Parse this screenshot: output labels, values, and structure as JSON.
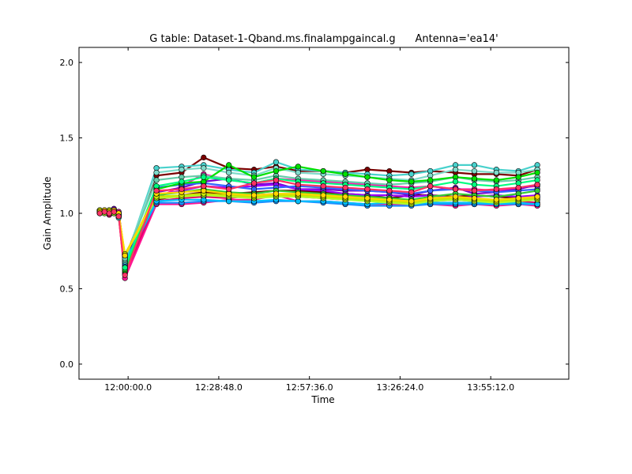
{
  "chart_data": {
    "type": "line",
    "title": "G table: Dataset-1-Qband.ms.finalampgaincal.g      Antenna='ea14'",
    "xlabel": "Time",
    "ylabel": "Gain Amplitude",
    "xlim": [
      "11:44:24",
      "14:20:00"
    ],
    "ylim": [
      -0.1,
      2.1
    ],
    "xticks": [
      "12:00:00.0",
      "12:28:48.0",
      "12:57:36.0",
      "13:26:24.0",
      "13:55:12.0"
    ],
    "yticks": [
      "0.0",
      "0.5",
      "1.0",
      "1.5",
      "2.0"
    ],
    "grid": false,
    "legend": "none",
    "marker": "circle",
    "x": [
      "11:51:00",
      "11:52:30",
      "11:54:00",
      "11:55:30",
      "11:57:00",
      "11:59:00",
      "12:09:00",
      "12:17:00",
      "12:24:00",
      "12:32:00",
      "12:40:00",
      "12:47:00",
      "12:54:00",
      "13:02:00",
      "13:09:00",
      "13:16:00",
      "13:23:00",
      "13:30:00",
      "13:36:00",
      "13:44:00",
      "13:50:00",
      "13:57:00",
      "14:04:00",
      "14:10:00"
    ],
    "series": [
      {
        "color": "#7b0000",
        "values": [
          1.02,
          1.01,
          1.02,
          1.0,
          1.01,
          0.7,
          1.25,
          1.27,
          1.37,
          1.3,
          1.29,
          1.31,
          1.28,
          1.28,
          1.27,
          1.29,
          1.28,
          1.27,
          1.28,
          1.27,
          1.26,
          1.26,
          1.25,
          1.29
        ]
      },
      {
        "color": "#660000",
        "values": [
          1.01,
          1.0,
          1.01,
          1.01,
          1.0,
          0.71,
          1.09,
          1.12,
          1.14,
          1.13,
          1.14,
          1.15,
          1.15,
          1.14,
          1.13,
          1.12,
          1.1,
          1.12,
          1.12,
          1.11,
          1.12,
          1.11,
          1.1,
          1.11
        ]
      },
      {
        "color": "#ff1493",
        "values": [
          1.01,
          1.02,
          1.0,
          1.01,
          0.99,
          0.57,
          1.06,
          1.06,
          1.07,
          1.09,
          1.09,
          1.12,
          1.08,
          1.08,
          1.07,
          1.06,
          1.06,
          1.06,
          1.06,
          1.05,
          1.06,
          1.05,
          1.06,
          1.05
        ]
      },
      {
        "color": "#ff1ab0",
        "values": [
          1.02,
          1.01,
          1.02,
          1.0,
          1.01,
          0.61,
          1.1,
          1.18,
          1.26,
          1.22,
          1.2,
          1.23,
          1.22,
          1.21,
          1.2,
          1.19,
          1.18,
          1.17,
          1.18,
          1.16,
          1.16,
          1.15,
          1.17,
          1.18
        ]
      },
      {
        "color": "#e6006e",
        "values": [
          1.0,
          1.01,
          0.99,
          1.0,
          0.98,
          0.6,
          1.08,
          1.1,
          1.11,
          1.1,
          1.12,
          1.13,
          1.11,
          1.1,
          1.09,
          1.09,
          1.08,
          1.07,
          1.08,
          1.09,
          1.08,
          1.07,
          1.08,
          1.07
        ]
      },
      {
        "color": "#7a00cc",
        "values": [
          1.01,
          1.02,
          1.01,
          1.03,
          1.0,
          0.64,
          1.14,
          1.17,
          1.21,
          1.23,
          1.19,
          1.2,
          1.16,
          1.16,
          1.15,
          1.15,
          1.14,
          1.12,
          1.15,
          1.17,
          1.13,
          1.14,
          1.16,
          1.19
        ]
      },
      {
        "color": "#9900ff",
        "values": [
          1.02,
          1.0,
          1.02,
          1.01,
          0.99,
          0.65,
          1.12,
          1.15,
          1.18,
          1.17,
          1.18,
          1.19,
          1.16,
          1.15,
          1.13,
          1.12,
          1.12,
          1.11,
          1.12,
          1.1,
          1.11,
          1.12,
          1.11,
          1.12
        ]
      },
      {
        "color": "#3366ff",
        "values": [
          1.0,
          1.01,
          1.0,
          1.02,
          0.98,
          0.66,
          1.17,
          1.19,
          1.2,
          1.18,
          1.16,
          1.17,
          1.18,
          1.17,
          1.16,
          1.15,
          1.14,
          1.13,
          1.15,
          1.16,
          1.15,
          1.14,
          1.15,
          1.16
        ]
      },
      {
        "color": "#1e90ff",
        "values": [
          1.01,
          1.0,
          1.01,
          1.0,
          0.99,
          0.67,
          1.07,
          1.07,
          1.08,
          1.08,
          1.07,
          1.08,
          1.08,
          1.07,
          1.06,
          1.05,
          1.05,
          1.05,
          1.06,
          1.06,
          1.06,
          1.06,
          1.06,
          1.06
        ]
      },
      {
        "color": "#00bfff",
        "values": [
          1.02,
          1.01,
          1.02,
          1.01,
          1.0,
          0.68,
          1.08,
          1.09,
          1.09,
          1.08,
          1.08,
          1.09,
          1.08,
          1.08,
          1.07,
          1.06,
          1.07,
          1.06,
          1.07,
          1.07,
          1.07,
          1.06,
          1.07,
          1.06
        ]
      },
      {
        "color": "#48d1cc",
        "values": [
          1.02,
          1.01,
          1.02,
          1.0,
          0.97,
          0.68,
          1.3,
          1.31,
          1.32,
          1.29,
          1.27,
          1.34,
          1.29,
          1.28,
          1.27,
          1.26,
          1.25,
          1.26,
          1.28,
          1.32,
          1.32,
          1.29,
          1.28,
          1.32
        ]
      },
      {
        "color": "#7fdbca",
        "values": [
          1.01,
          1.02,
          1.0,
          1.01,
          0.98,
          0.69,
          1.27,
          1.29,
          1.3,
          1.27,
          1.25,
          1.3,
          1.27,
          1.26,
          1.25,
          1.24,
          1.23,
          1.22,
          1.25,
          1.29,
          1.28,
          1.27,
          1.27,
          1.29
        ]
      },
      {
        "color": "#66cdaa",
        "values": [
          1.0,
          1.01,
          1.0,
          1.02,
          0.98,
          0.7,
          1.22,
          1.24,
          1.25,
          1.23,
          1.22,
          1.25,
          1.23,
          1.22,
          1.21,
          1.2,
          1.19,
          1.2,
          1.21,
          1.24,
          1.22,
          1.21,
          1.22,
          1.24
        ]
      },
      {
        "color": "#00e000",
        "values": [
          1.01,
          1.02,
          1.01,
          1.0,
          0.99,
          0.62,
          1.16,
          1.2,
          1.21,
          1.32,
          1.24,
          1.28,
          1.31,
          1.28,
          1.26,
          1.24,
          1.22,
          1.21,
          1.22,
          1.24,
          1.23,
          1.22,
          1.24,
          1.27
        ]
      },
      {
        "color": "#32cd32",
        "values": [
          1.02,
          1.01,
          1.02,
          1.01,
          1.0,
          0.63,
          1.12,
          1.14,
          1.16,
          1.14,
          1.13,
          1.15,
          1.14,
          1.13,
          1.12,
          1.11,
          1.1,
          1.09,
          1.11,
          1.13,
          1.12,
          1.11,
          1.13,
          1.15
        ]
      },
      {
        "color": "#00ff7f",
        "values": [
          1.0,
          1.01,
          1.0,
          1.02,
          0.99,
          0.64,
          1.18,
          1.21,
          1.24,
          1.22,
          1.2,
          1.23,
          1.21,
          1.2,
          1.19,
          1.18,
          1.17,
          1.16,
          1.18,
          1.21,
          1.19,
          1.18,
          1.2,
          1.22
        ]
      },
      {
        "color": "#adff2f",
        "values": [
          1.01,
          1.0,
          1.01,
          1.0,
          0.98,
          0.72,
          1.1,
          1.11,
          1.12,
          1.11,
          1.1,
          1.11,
          1.11,
          1.1,
          1.09,
          1.08,
          1.07,
          1.06,
          1.08,
          1.09,
          1.08,
          1.07,
          1.08,
          1.09
        ]
      },
      {
        "color": "#c8e600",
        "values": [
          1.02,
          1.01,
          1.02,
          1.01,
          0.99,
          0.73,
          1.11,
          1.12,
          1.13,
          1.12,
          1.11,
          1.12,
          1.12,
          1.11,
          1.1,
          1.09,
          1.08,
          1.07,
          1.09,
          1.1,
          1.09,
          1.08,
          1.09,
          1.1
        ]
      },
      {
        "color": "#ffd700",
        "values": [
          1.01,
          1.02,
          1.01,
          1.02,
          1.0,
          0.72,
          1.13,
          1.14,
          1.15,
          1.13,
          1.12,
          1.13,
          1.13,
          1.12,
          1.11,
          1.1,
          1.09,
          1.08,
          1.1,
          1.11,
          1.1,
          1.09,
          1.1,
          1.11
        ]
      },
      {
        "color": "#ff3366",
        "values": [
          1.0,
          1.01,
          1.0,
          1.01,
          0.98,
          0.59,
          1.15,
          1.16,
          1.18,
          1.16,
          1.2,
          1.22,
          1.19,
          1.18,
          1.17,
          1.16,
          1.15,
          1.14,
          1.18,
          1.16,
          1.15,
          1.16,
          1.17,
          1.19
        ]
      }
    ]
  }
}
